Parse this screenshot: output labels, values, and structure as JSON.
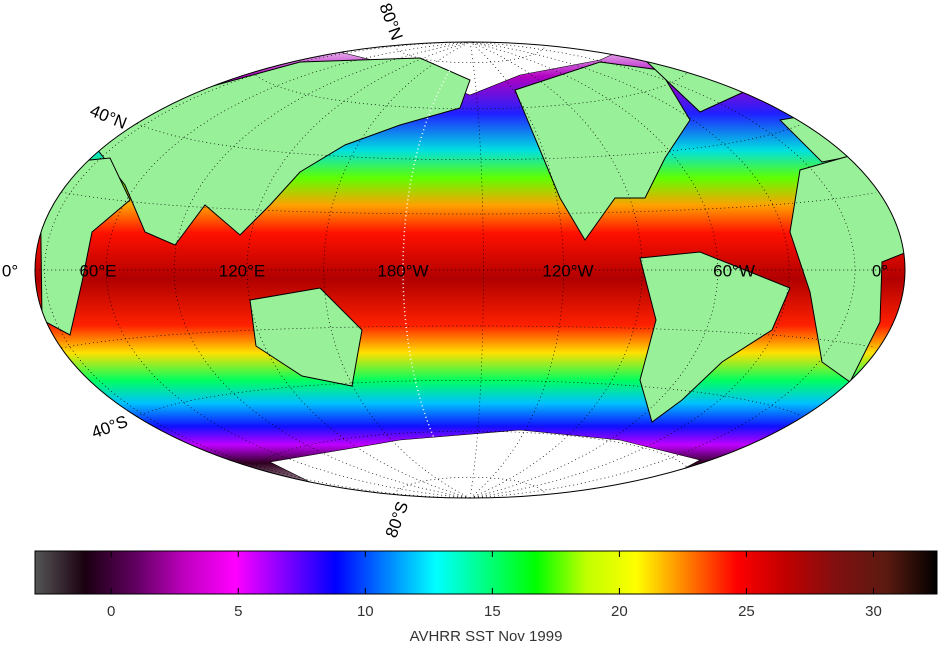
{
  "chart_data": {
    "type": "map",
    "graticule_labels": [
      "80°N",
      "40°N",
      "0°",
      "60°E",
      "120°E",
      "180°W",
      "120°W",
      "60°W",
      "0°",
      "40°S",
      "80°S"
    ],
    "colorbar": {
      "label": "AVHRR SST Nov 1999",
      "clim": [
        -3,
        32.5
      ],
      "ticks": [
        0,
        5,
        10,
        15,
        20,
        25,
        30
      ],
      "colormap": [
        "#555555",
        "#1a0010",
        "#600060",
        "#c000c0",
        "#ff00ff",
        "#8000ff",
        "#0000ff",
        "#0080ff",
        "#00ffff",
        "#00ff80",
        "#00ff00",
        "#c0ff00",
        "#ffff00",
        "#ff8000",
        "#ff0000",
        "#c00000",
        "#801010",
        "#5a1a10",
        "#000000"
      ]
    }
  }
}
